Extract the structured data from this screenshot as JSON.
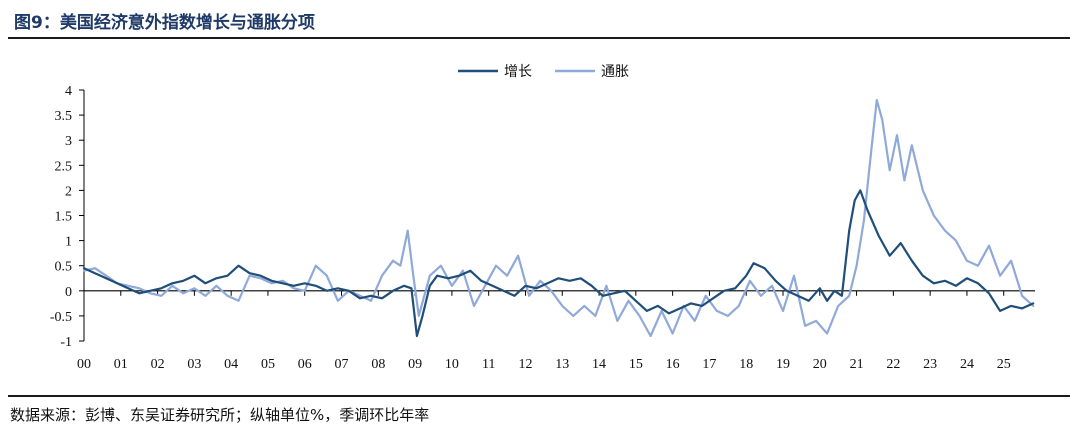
{
  "header": {
    "title": "图9：美国经济意外指数增长与通胀分项"
  },
  "footer": {
    "source": "数据来源：彭博、东吴证券研究所；纵轴单位%，季调环比年率"
  },
  "colors": {
    "growth": "#1f4e79",
    "inflation": "#8fa9d9",
    "axis": "#000000"
  },
  "chart_data": {
    "type": "line",
    "title": "",
    "xlabel": "",
    "ylabel": "",
    "ylim": [
      -1,
      4
    ],
    "xlim": [
      2000,
      2025.85
    ],
    "yticks": [
      "4",
      "3.5",
      "3",
      "2.5",
      "2",
      "1.5",
      "1",
      "0.5",
      "0",
      "-0.5",
      "-1"
    ],
    "ytick_values": [
      4,
      3.5,
      3,
      2.5,
      2,
      1.5,
      1,
      0.5,
      0,
      -0.5,
      -1
    ],
    "xticks": [
      "00",
      "01",
      "02",
      "03",
      "04",
      "05",
      "06",
      "07",
      "08",
      "09",
      "10",
      "11",
      "12",
      "13",
      "14",
      "15",
      "16",
      "17",
      "18",
      "19",
      "20",
      "21",
      "22",
      "23",
      "24",
      "25"
    ],
    "grid": false,
    "legend": "top-center",
    "series": [
      {
        "name": "增长",
        "x": [
          2000.0,
          2000.3,
          2000.6,
          2000.9,
          2001.2,
          2001.5,
          2001.8,
          2002.1,
          2002.4,
          2002.7,
          2003.0,
          2003.3,
          2003.6,
          2003.9,
          2004.2,
          2004.5,
          2004.8,
          2005.1,
          2005.4,
          2005.7,
          2006.0,
          2006.3,
          2006.6,
          2006.9,
          2007.2,
          2007.5,
          2007.8,
          2008.1,
          2008.4,
          2008.7,
          2008.9,
          2009.05,
          2009.2,
          2009.4,
          2009.6,
          2009.9,
          2010.2,
          2010.5,
          2010.8,
          2011.1,
          2011.4,
          2011.7,
          2012.0,
          2012.3,
          2012.6,
          2012.9,
          2013.2,
          2013.5,
          2013.8,
          2014.1,
          2014.4,
          2014.7,
          2015.0,
          2015.3,
          2015.6,
          2015.9,
          2016.2,
          2016.5,
          2016.8,
          2017.1,
          2017.4,
          2017.7,
          2018.0,
          2018.2,
          2018.5,
          2018.8,
          2019.1,
          2019.4,
          2019.7,
          2020.0,
          2020.2,
          2020.4,
          2020.6,
          2020.8,
          2020.95,
          2021.1,
          2021.3,
          2021.6,
          2021.9,
          2022.2,
          2022.5,
          2022.8,
          2023.1,
          2023.4,
          2023.7,
          2024.0,
          2024.3,
          2024.6,
          2024.9,
          2025.2,
          2025.5,
          2025.8
        ],
        "values": [
          0.45,
          0.35,
          0.25,
          0.15,
          0.05,
          -0.05,
          0.0,
          0.05,
          0.15,
          0.2,
          0.3,
          0.15,
          0.25,
          0.3,
          0.5,
          0.35,
          0.3,
          0.2,
          0.15,
          0.1,
          0.15,
          0.1,
          0.0,
          0.05,
          0.0,
          -0.15,
          -0.1,
          -0.15,
          0.0,
          0.1,
          0.05,
          -0.9,
          -0.5,
          0.1,
          0.3,
          0.25,
          0.3,
          0.4,
          0.2,
          0.1,
          0.0,
          -0.1,
          0.1,
          0.05,
          0.15,
          0.25,
          0.2,
          0.25,
          0.1,
          -0.1,
          -0.05,
          0.0,
          -0.2,
          -0.4,
          -0.3,
          -0.45,
          -0.35,
          -0.25,
          -0.3,
          -0.15,
          0.0,
          0.05,
          0.3,
          0.55,
          0.45,
          0.2,
          0.0,
          -0.1,
          -0.2,
          0.05,
          -0.2,
          0.0,
          -0.1,
          1.2,
          1.8,
          2.0,
          1.6,
          1.1,
          0.7,
          0.95,
          0.6,
          0.3,
          0.15,
          0.2,
          0.1,
          0.25,
          0.15,
          -0.05,
          -0.4,
          -0.3,
          -0.35,
          -0.25
        ]
      },
      {
        "name": "通胀",
        "x": [
          2000.0,
          2000.3,
          2000.6,
          2000.9,
          2001.2,
          2001.5,
          2001.8,
          2002.1,
          2002.4,
          2002.7,
          2003.0,
          2003.3,
          2003.6,
          2003.9,
          2004.2,
          2004.5,
          2004.8,
          2005.1,
          2005.4,
          2005.7,
          2006.0,
          2006.3,
          2006.6,
          2006.9,
          2007.2,
          2007.5,
          2007.8,
          2008.1,
          2008.4,
          2008.6,
          2008.8,
          2008.95,
          2009.1,
          2009.4,
          2009.7,
          2010.0,
          2010.3,
          2010.6,
          2010.9,
          2011.2,
          2011.5,
          2011.8,
          2012.1,
          2012.4,
          2012.7,
          2013.0,
          2013.3,
          2013.6,
          2013.9,
          2014.2,
          2014.5,
          2014.8,
          2015.1,
          2015.4,
          2015.7,
          2016.0,
          2016.3,
          2016.6,
          2016.9,
          2017.2,
          2017.5,
          2017.8,
          2018.1,
          2018.4,
          2018.7,
          2019.0,
          2019.3,
          2019.6,
          2019.9,
          2020.2,
          2020.5,
          2020.8,
          2021.0,
          2021.2,
          2021.4,
          2021.55,
          2021.7,
          2021.9,
          2022.1,
          2022.3,
          2022.5,
          2022.8,
          2023.1,
          2023.4,
          2023.7,
          2024.0,
          2024.3,
          2024.6,
          2024.9,
          2025.2,
          2025.5,
          2025.8
        ],
        "values": [
          0.4,
          0.45,
          0.3,
          0.15,
          0.1,
          0.05,
          -0.05,
          -0.1,
          0.1,
          -0.05,
          0.05,
          -0.1,
          0.1,
          -0.1,
          -0.2,
          0.3,
          0.25,
          0.15,
          0.2,
          0.05,
          0.0,
          0.5,
          0.3,
          -0.2,
          0.0,
          -0.1,
          -0.2,
          0.3,
          0.6,
          0.5,
          1.2,
          0.3,
          -0.5,
          0.3,
          0.5,
          0.1,
          0.4,
          -0.3,
          0.1,
          0.5,
          0.3,
          0.7,
          -0.1,
          0.2,
          0.0,
          -0.3,
          -0.5,
          -0.3,
          -0.5,
          0.1,
          -0.6,
          -0.2,
          -0.5,
          -0.9,
          -0.4,
          -0.85,
          -0.3,
          -0.6,
          -0.1,
          -0.4,
          -0.5,
          -0.3,
          0.2,
          -0.1,
          0.1,
          -0.4,
          0.3,
          -0.7,
          -0.6,
          -0.85,
          -0.3,
          -0.1,
          0.5,
          1.4,
          2.8,
          3.8,
          3.4,
          2.4,
          3.1,
          2.2,
          2.9,
          2.0,
          1.5,
          1.2,
          1.0,
          0.6,
          0.5,
          0.9,
          0.3,
          0.6,
          -0.1,
          -0.3
        ]
      }
    ]
  }
}
